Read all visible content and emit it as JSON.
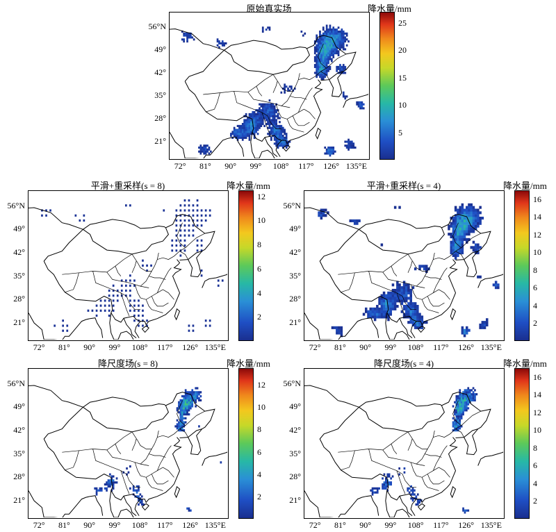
{
  "colorbar_title": "降水量/mm",
  "y_ticks": [
    "56°N",
    "49°",
    "42°",
    "35°",
    "28°",
    "21°"
  ],
  "x_ticks": [
    "72°",
    "81°",
    "90°",
    "99°",
    "108°",
    "117°",
    "126°",
    "135°E"
  ],
  "panels": [
    {
      "title": "原始真实场",
      "colorbar_ticks": [
        "25",
        "20",
        "15",
        "10",
        "5"
      ],
      "cbar_max": 27
    },
    {
      "title": "平滑+重采样(s = 8)",
      "colorbar_ticks": [
        "12",
        "10",
        "8",
        "6",
        "4",
        "2"
      ],
      "cbar_max": 12.5
    },
    {
      "title": "平滑+重采样(s = 4)",
      "colorbar_ticks": [
        "16",
        "14",
        "12",
        "10",
        "8",
        "6",
        "4",
        "2"
      ],
      "cbar_max": 17
    },
    {
      "title": "降尺度场(s = 8)",
      "colorbar_ticks": [
        "12",
        "10",
        "8",
        "6",
        "4",
        "2"
      ],
      "cbar_max": 13.5
    },
    {
      "title": "降尺度场(s = 4)",
      "colorbar_ticks": [
        "16",
        "14",
        "12",
        "10",
        "8",
        "6",
        "4",
        "2"
      ],
      "cbar_max": 17
    }
  ],
  "colors": {
    "low": "#1a2f8f",
    "mid": "#2a8fd6",
    "high": "#8b0a0a",
    "border": "#000000"
  }
}
